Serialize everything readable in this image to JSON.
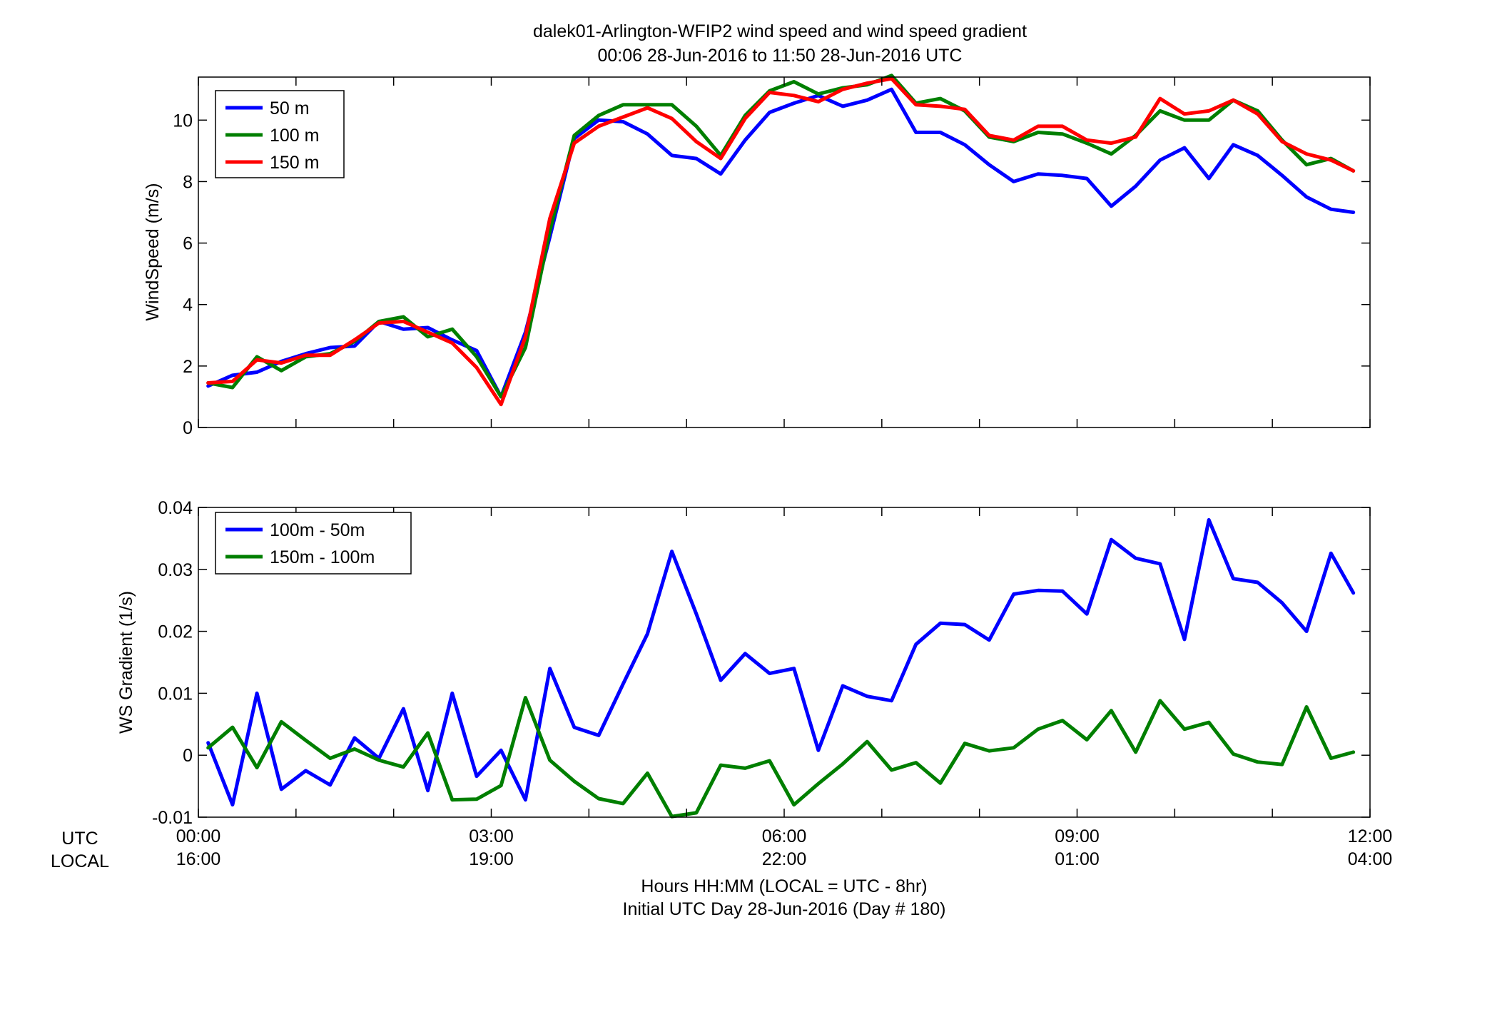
{
  "chart_data": [
    {
      "type": "line",
      "title": "dalek01-Arlington-WFIP2  wind speed and wind speed gradient",
      "subtitle": "00:06 28-Jun-2016 to 11:50 28-Jun-2016  UTC",
      "ylabel": "WindSpeed (m/s)",
      "ylim": [
        0,
        11.4
      ],
      "yticks": [
        "0",
        "2",
        "4",
        "6",
        "8",
        "10"
      ],
      "xlim": [
        0,
        12
      ],
      "legend_position": "top-left",
      "x": [
        0.1,
        0.35,
        0.6,
        0.85,
        1.1,
        1.35,
        1.6,
        1.85,
        2.1,
        2.35,
        2.6,
        2.85,
        3.1,
        3.35,
        3.6,
        3.85,
        4.1,
        4.35,
        4.6,
        4.85,
        5.1,
        5.35,
        5.6,
        5.85,
        6.1,
        6.35,
        6.6,
        6.85,
        7.1,
        7.35,
        7.6,
        7.85,
        8.1,
        8.35,
        8.6,
        8.85,
        9.1,
        9.35,
        9.6,
        9.85,
        10.1,
        10.35,
        10.6,
        10.85,
        11.1,
        11.35,
        11.6,
        11.83
      ],
      "series": [
        {
          "name": "50 m",
          "color": "#0000ff",
          "values": [
            1.35,
            1.7,
            1.8,
            2.15,
            2.4,
            2.6,
            2.65,
            3.45,
            3.2,
            3.25,
            2.85,
            2.5,
            1.0,
            3.1,
            6.2,
            9.4,
            10.0,
            9.95,
            9.55,
            8.85,
            8.75,
            8.25,
            9.35,
            10.25,
            10.55,
            10.8,
            10.45,
            10.65,
            11.0,
            9.6,
            9.6,
            9.2,
            8.55,
            8.0,
            8.25,
            8.2,
            8.1,
            7.2,
            7.85,
            8.7,
            9.1,
            8.1,
            9.2,
            8.85,
            8.2,
            7.5,
            7.1,
            7.0
          ]
        },
        {
          "name": "100 m",
          "color": "#007f00",
          "values": [
            1.45,
            1.3,
            2.3,
            1.85,
            2.3,
            2.4,
            2.8,
            3.45,
            3.6,
            2.95,
            3.2,
            2.3,
            1.0,
            2.6,
            6.4,
            9.5,
            10.15,
            10.5,
            10.5,
            10.5,
            9.8,
            8.85,
            10.15,
            10.95,
            11.25,
            10.85,
            11.05,
            11.15,
            11.45,
            10.55,
            10.7,
            10.3,
            9.45,
            9.3,
            9.6,
            9.55,
            9.25,
            8.9,
            9.5,
            10.3,
            10.0,
            10.0,
            10.65,
            10.3,
            9.35,
            8.55,
            8.75,
            8.35
          ]
        },
        {
          "name": "150 m",
          "color": "#ff0000",
          "values": [
            1.45,
            1.5,
            2.2,
            2.1,
            2.35,
            2.35,
            2.85,
            3.4,
            3.45,
            3.1,
            2.75,
            1.95,
            0.75,
            2.95,
            6.8,
            9.25,
            9.8,
            10.1,
            10.4,
            10.05,
            9.3,
            8.75,
            10.05,
            10.9,
            10.8,
            10.6,
            11.0,
            11.2,
            11.35,
            10.5,
            10.45,
            10.35,
            9.5,
            9.35,
            9.8,
            9.8,
            9.35,
            9.25,
            9.45,
            10.7,
            10.2,
            10.3,
            10.65,
            10.2,
            9.3,
            8.9,
            8.7,
            8.35
          ]
        }
      ]
    },
    {
      "type": "line",
      "ylabel": "WS Gradient (1/s)",
      "ylim": [
        -0.01,
        0.04
      ],
      "yticks": [
        "-0.01",
        "0",
        "0.01",
        "0.02",
        "0.03",
        "0.04"
      ],
      "xlim": [
        0,
        12
      ],
      "legend_position": "top-left",
      "x": [
        0.1,
        0.35,
        0.6,
        0.85,
        1.1,
        1.35,
        1.6,
        1.85,
        2.1,
        2.35,
        2.6,
        2.85,
        3.1,
        3.35,
        3.6,
        3.85,
        4.1,
        4.35,
        4.6,
        4.85,
        5.1,
        5.35,
        5.6,
        5.85,
        6.1,
        6.35,
        6.6,
        6.85,
        7.1,
        7.35,
        7.6,
        7.85,
        8.1,
        8.35,
        8.6,
        8.85,
        9.1,
        9.35,
        9.6,
        9.85,
        10.1,
        10.35,
        10.6,
        10.85,
        11.1,
        11.35,
        11.6,
        11.83
      ],
      "series": [
        {
          "name": "100m - 50m",
          "color": "#0000ff",
          "values": [
            0.002,
            -0.008,
            0.01,
            -0.0055,
            -0.0025,
            -0.0048,
            0.0028,
            -0.0005,
            0.0075,
            -0.0057,
            0.01,
            -0.0034,
            0.0008,
            -0.0072,
            0.014,
            0.0045,
            0.0032,
            0.0115,
            0.0196,
            0.0329,
            0.0228,
            0.0121,
            0.0164,
            0.0132,
            0.014,
            0.0008,
            0.0112,
            0.0095,
            0.0088,
            0.0179,
            0.0213,
            0.0211,
            0.0186,
            0.026,
            0.0266,
            0.0265,
            0.0228,
            0.0348,
            0.0318,
            0.0309,
            0.0187,
            0.038,
            0.0285,
            0.0279,
            0.0246,
            0.02,
            0.0326,
            0.0262
          ]
        },
        {
          "name": "150m - 100m",
          "color": "#007f00",
          "values": [
            0.0012,
            0.0045,
            -0.002,
            0.0054,
            0.0024,
            -0.0005,
            0.001,
            -0.0008,
            -0.0019,
            0.0036,
            -0.0072,
            -0.0071,
            -0.0049,
            0.0093,
            -0.0008,
            -0.0042,
            -0.007,
            -0.0078,
            -0.0029,
            -0.0099,
            -0.0093,
            -0.0016,
            -0.0021,
            -0.0009,
            -0.008,
            -0.0046,
            -0.0014,
            0.0022,
            -0.0024,
            -0.0012,
            -0.0045,
            0.0019,
            0.0007,
            0.0012,
            0.0042,
            0.0056,
            0.0025,
            0.0072,
            0.0005,
            0.0088,
            0.0042,
            0.0053,
            0.0002,
            -0.0011,
            -0.0015,
            0.0078,
            -0.0005,
            0.0005
          ]
        }
      ]
    }
  ],
  "xaxis": {
    "utc_label": "UTC",
    "local_label": "LOCAL",
    "ticks_utc": [
      "00:00",
      "03:00",
      "06:00",
      "09:00",
      "12:00"
    ],
    "ticks_local": [
      "16:00",
      "19:00",
      "22:00",
      "01:00",
      "04:00"
    ],
    "label_line1": "Hours HH:MM  (LOCAL = UTC - 8hr)",
    "label_line2": "Initial UTC Day 28-Jun-2016 (Day # 180)"
  }
}
